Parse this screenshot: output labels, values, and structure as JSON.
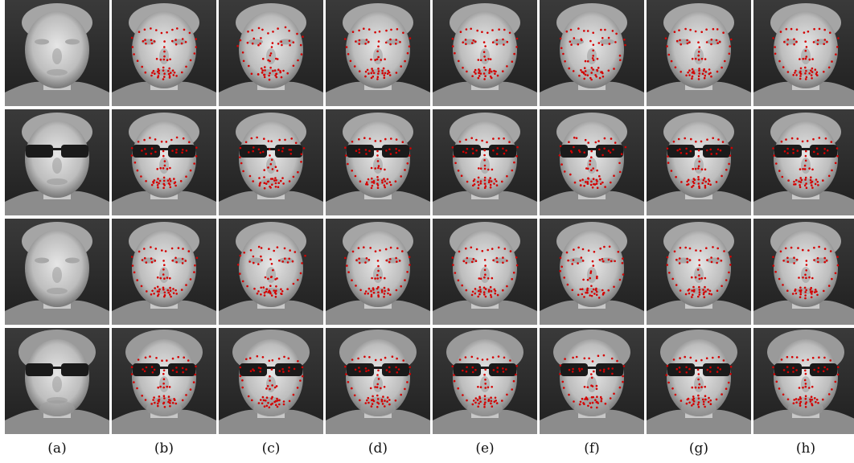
{
  "column_labels": [
    "(a)",
    "(b)",
    "(c)",
    "(d)",
    "(e)",
    "(f)",
    "(g)",
    "(h)"
  ],
  "rows": [
    {
      "subject": "face-1",
      "glasses": false,
      "beard": false
    },
    {
      "subject": "face-2",
      "glasses": true,
      "beard": false
    },
    {
      "subject": "face-3",
      "glasses": false,
      "beard": false
    },
    {
      "subject": "face-4",
      "glasses": true,
      "beard": true
    }
  ],
  "landmark_color": "#d40000",
  "landmark_column_start": 1
}
